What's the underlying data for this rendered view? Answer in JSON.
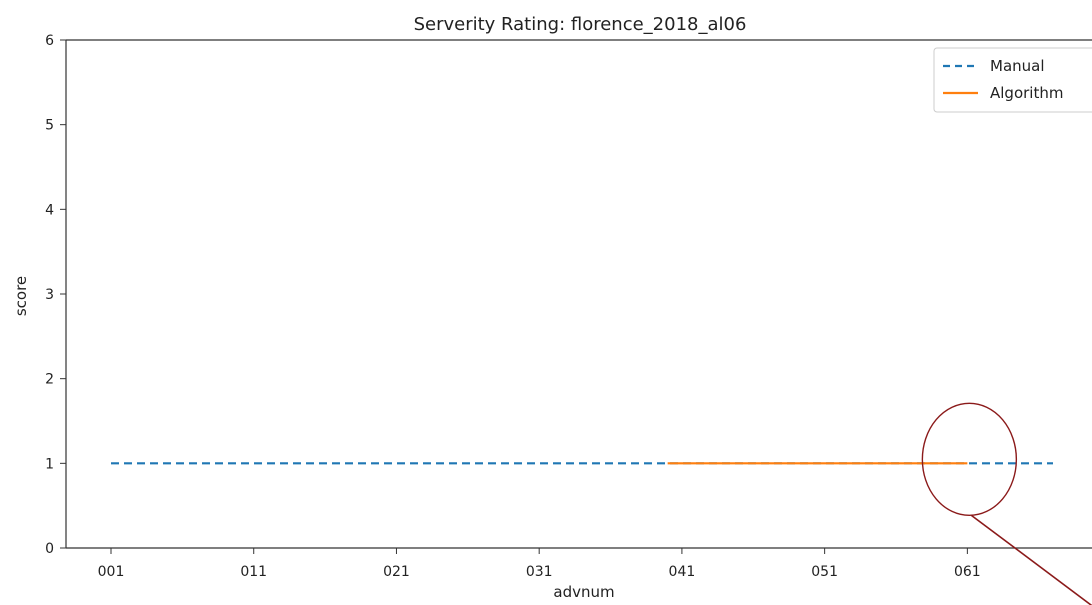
{
  "chart_data": {
    "type": "line",
    "title": "Serverity Rating: florence_2018_al06",
    "xlabel": "advnum",
    "ylabel": "score",
    "ylim": [
      0,
      6
    ],
    "yticks": [
      0,
      1,
      2,
      3,
      4,
      5,
      6
    ],
    "x_range": [
      1,
      67
    ],
    "x_ticks": [
      {
        "value": 1,
        "label": "001"
      },
      {
        "value": 11,
        "label": "011"
      },
      {
        "value": 21,
        "label": "021"
      },
      {
        "value": 31,
        "label": "031"
      },
      {
        "value": 41,
        "label": "041"
      },
      {
        "value": 51,
        "label": "051"
      },
      {
        "value": 61,
        "label": "061"
      }
    ],
    "grid": false,
    "legend_position": "top-right",
    "series": [
      {
        "name": "Manual",
        "style": "dashed",
        "color": "#1f77b4",
        "x": [
          1,
          67
        ],
        "y": [
          1,
          1
        ]
      },
      {
        "name": "Algorithm",
        "style": "solid",
        "color": "#ff7f0e",
        "x": [
          40,
          61
        ],
        "y": [
          1,
          1
        ]
      }
    ],
    "annotation": {
      "type": "circle-callout",
      "color": "#8b1a1a",
      "center": {
        "x": 61,
        "y": 1
      }
    }
  }
}
